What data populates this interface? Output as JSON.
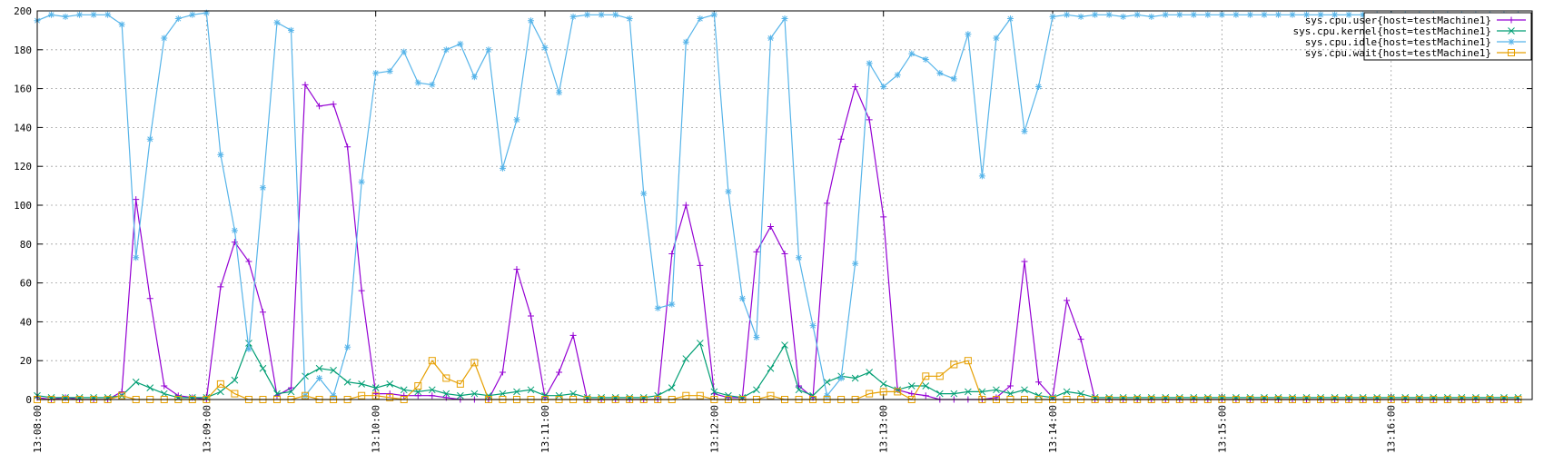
{
  "chart_data": {
    "type": "line",
    "title": "",
    "xlabel": "",
    "ylabel": "",
    "ylim": [
      0,
      200
    ],
    "yticks": [
      0,
      20,
      40,
      60,
      80,
      100,
      120,
      140,
      160,
      180,
      200
    ],
    "xlim": [
      "13:08:00",
      "13:16:50"
    ],
    "xtick_labels": [
      "13:08:00",
      "13:09:00",
      "13:10:00",
      "13:11:00",
      "13:12:00",
      "13:13:00",
      "13:14:00",
      "13:15:00",
      "13:16:00"
    ],
    "grid": true,
    "legend_position": "top-right",
    "x": [
      "13:08:00",
      "13:08:05",
      "13:08:10",
      "13:08:15",
      "13:08:20",
      "13:08:25",
      "13:08:30",
      "13:08:35",
      "13:08:40",
      "13:08:45",
      "13:08:50",
      "13:08:55",
      "13:09:00",
      "13:09:05",
      "13:09:10",
      "13:09:15",
      "13:09:20",
      "13:09:25",
      "13:09:30",
      "13:09:35",
      "13:09:40",
      "13:09:45",
      "13:09:50",
      "13:09:55",
      "13:10:00",
      "13:10:05",
      "13:10:10",
      "13:10:15",
      "13:10:20",
      "13:10:25",
      "13:10:30",
      "13:10:35",
      "13:10:40",
      "13:10:45",
      "13:10:50",
      "13:10:55",
      "13:11:00",
      "13:11:05",
      "13:11:10",
      "13:11:15",
      "13:11:20",
      "13:11:25",
      "13:11:30",
      "13:11:35",
      "13:11:40",
      "13:11:45",
      "13:11:50",
      "13:11:55",
      "13:12:00",
      "13:12:05",
      "13:12:10",
      "13:12:15",
      "13:12:20",
      "13:12:25",
      "13:12:30",
      "13:12:35",
      "13:12:40",
      "13:12:45",
      "13:12:50",
      "13:12:55",
      "13:13:00",
      "13:13:05",
      "13:13:10",
      "13:13:15",
      "13:13:20",
      "13:13:25",
      "13:13:30",
      "13:13:35",
      "13:13:40",
      "13:13:45",
      "13:13:50",
      "13:13:55",
      "13:14:00",
      "13:14:05",
      "13:14:10",
      "13:14:15",
      "13:14:20",
      "13:14:25",
      "13:14:30",
      "13:14:35",
      "13:14:40",
      "13:14:45",
      "13:14:50",
      "13:14:55",
      "13:15:00",
      "13:15:05",
      "13:15:10",
      "13:15:15",
      "13:15:20",
      "13:15:25",
      "13:15:30",
      "13:15:35",
      "13:15:40",
      "13:15:45",
      "13:15:50",
      "13:15:55",
      "13:16:00",
      "13:16:05",
      "13:16:10",
      "13:16:15",
      "13:16:20",
      "13:16:25",
      "13:16:30",
      "13:16:35",
      "13:16:40",
      "13:16:45"
    ],
    "series": [
      {
        "name": "sys.cpu.user{host=testMachine1}",
        "color": "#9400d3",
        "marker": "plus",
        "values": [
          1,
          0,
          1,
          0,
          0,
          0,
          4,
          103,
          52,
          7,
          2,
          1,
          0,
          58,
          81,
          71,
          45,
          2,
          6,
          162,
          151,
          152,
          130,
          56,
          3,
          3,
          2,
          2,
          2,
          1,
          0,
          0,
          0,
          14,
          67,
          43,
          1,
          14,
          33,
          0,
          0,
          0,
          0,
          0,
          0,
          75,
          100,
          69,
          3,
          1,
          1,
          76,
          89,
          75,
          7,
          1,
          101,
          134,
          161,
          144,
          94,
          5,
          3,
          2,
          0,
          0,
          0,
          0,
          1,
          7,
          71,
          9,
          1,
          51,
          31,
          0,
          0,
          0,
          0,
          0,
          0,
          0,
          0,
          0,
          0,
          0,
          0,
          0,
          0,
          0,
          0,
          0,
          0,
          0,
          0,
          0,
          0,
          0,
          0,
          0,
          0,
          0,
          0,
          0,
          0,
          0
        ]
      },
      {
        "name": "sys.cpu.kernel{host=testMachine1}",
        "color": "#009e73",
        "marker": "cross",
        "values": [
          2,
          1,
          1,
          1,
          1,
          1,
          2,
          9,
          6,
          3,
          1,
          1,
          1,
          4,
          10,
          29,
          16,
          3,
          4,
          12,
          16,
          15,
          9,
          8,
          6,
          8,
          5,
          4,
          5,
          3,
          2,
          3,
          2,
          3,
          4,
          5,
          2,
          2,
          3,
          1,
          1,
          1,
          1,
          1,
          2,
          6,
          21,
          29,
          4,
          2,
          1,
          5,
          16,
          28,
          5,
          2,
          9,
          12,
          11,
          14,
          8,
          5,
          7,
          7,
          3,
          3,
          4,
          4,
          5,
          3,
          5,
          2,
          1,
          4,
          3,
          1,
          1,
          1,
          1,
          1,
          1,
          1,
          1,
          1,
          1,
          1,
          1,
          1,
          1,
          1,
          1,
          1,
          1,
          1,
          1,
          1,
          1,
          1,
          1,
          1,
          1,
          1,
          1,
          1,
          1,
          1
        ]
      },
      {
        "name": "sys.cpu.idle{host=testMachine1}",
        "color": "#56b4e9",
        "marker": "star",
        "values": [
          195,
          198,
          197,
          198,
          198,
          198,
          193,
          73,
          134,
          186,
          196,
          198,
          199,
          126,
          87,
          26,
          109,
          194,
          190,
          2,
          11,
          2,
          27,
          112,
          168,
          169,
          179,
          163,
          162,
          180,
          183,
          166,
          180,
          119,
          144,
          195,
          181,
          158,
          197,
          198,
          198,
          198,
          196,
          106,
          47,
          49,
          184,
          196,
          198,
          107,
          52,
          32,
          186,
          196,
          73,
          38,
          2,
          11,
          70,
          173,
          161,
          167,
          178,
          175,
          168,
          165,
          188,
          115,
          186,
          196,
          138,
          161,
          197,
          198,
          197,
          198,
          198,
          197,
          198,
          197,
          198,
          198,
          198,
          198,
          198,
          198,
          198,
          198,
          198,
          198,
          198,
          198,
          198,
          198,
          198,
          198,
          198,
          198,
          198,
          198,
          198,
          198,
          198,
          198,
          198,
          198
        ]
      },
      {
        "name": "sys.cpu.wait{host=testMachine1}",
        "color": "#e69f00",
        "marker": "square",
        "values": [
          0,
          0,
          0,
          0,
          0,
          0,
          2,
          0,
          0,
          0,
          0,
          0,
          0,
          8,
          3,
          0,
          0,
          0,
          0,
          2,
          0,
          0,
          0,
          2,
          2,
          1,
          0,
          7,
          20,
          11,
          8,
          19,
          0,
          0,
          0,
          0,
          0,
          0,
          0,
          0,
          0,
          0,
          0,
          0,
          0,
          0,
          2,
          2,
          0,
          0,
          0,
          0,
          2,
          0,
          0,
          0,
          0,
          0,
          0,
          3,
          4,
          4,
          0,
          12,
          12,
          18,
          20,
          0,
          0,
          0,
          0,
          0,
          0,
          0,
          0,
          0,
          0,
          0,
          0,
          0,
          0,
          0,
          0,
          0,
          0,
          0,
          0,
          0,
          0,
          0,
          0,
          0,
          0,
          0,
          0,
          0,
          0,
          0,
          0,
          0,
          0,
          0,
          0,
          0,
          0,
          0
        ]
      }
    ]
  }
}
